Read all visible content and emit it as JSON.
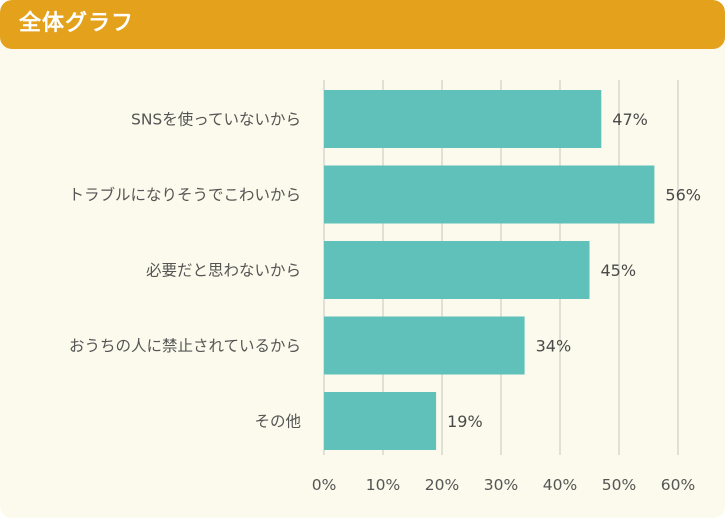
{
  "header": {
    "title": "全体グラフ"
  },
  "colors": {
    "header_bg": "#e4a11c",
    "card_bg": "#fcfaec",
    "bar": "#5fc1ba",
    "grid": "#d8d8d0"
  },
  "chart_data": {
    "type": "bar",
    "orientation": "horizontal",
    "title": "全体グラフ",
    "categories": [
      "SNSを使っていないから",
      "トラブルになりそうでこわいから",
      "必要だと思わないから",
      "おうちの人に禁止されているから",
      "その他"
    ],
    "values": [
      47,
      56,
      45,
      34,
      19
    ],
    "value_labels": [
      "47%",
      "56%",
      "45%",
      "34%",
      "19%"
    ],
    "xlim": [
      0,
      60
    ],
    "x_ticks": [
      0,
      10,
      20,
      30,
      40,
      50,
      60
    ],
    "x_tick_labels": [
      "0%",
      "10%",
      "20%",
      "30%",
      "40%",
      "50%",
      "60%"
    ],
    "grid": true,
    "legend": "none"
  }
}
